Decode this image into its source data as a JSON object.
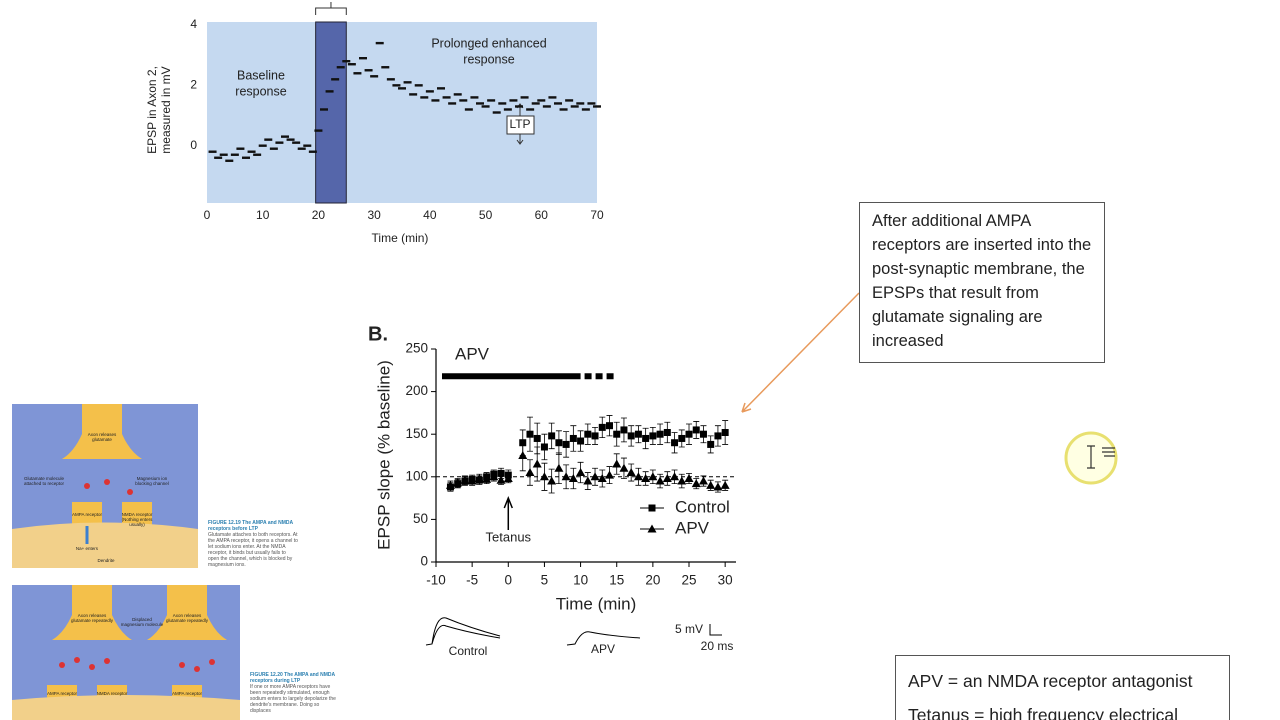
{
  "chart_data": [
    {
      "type": "scatter",
      "ylabel": [
        "EPSP in Axon 2,",
        "measured in mV"
      ],
      "xlabel": "Time (min)",
      "annotations": [
        [
          "Baseline",
          "response"
        ],
        [
          "Prolonged enhanced",
          "response"
        ],
        [
          "LTP"
        ]
      ],
      "shaded_range": [
        19.5,
        25
      ],
      "color": "#111111",
      "background": "#c5d9f0",
      "shade_color": "#5566aa",
      "x": [
        1,
        2,
        3,
        4,
        5,
        6,
        7,
        8,
        9,
        10,
        11,
        12,
        13,
        14,
        15,
        16,
        17,
        18,
        19,
        20,
        21,
        22,
        23,
        24,
        25,
        26,
        27,
        28,
        29,
        30,
        31,
        32,
        33,
        34,
        35,
        36,
        37,
        38,
        39,
        40,
        41,
        42,
        43,
        44,
        45,
        46,
        47,
        48,
        49,
        50,
        51,
        52,
        53,
        54,
        55,
        56,
        57,
        58,
        59,
        60,
        61,
        62,
        63,
        64,
        65,
        66,
        67,
        68,
        69,
        70
      ],
      "values": [
        -0.2,
        -0.4,
        -0.3,
        -0.5,
        -0.3,
        -0.1,
        -0.4,
        -0.2,
        -0.3,
        0.0,
        0.2,
        -0.1,
        0.1,
        0.3,
        0.2,
        0.1,
        -0.1,
        0.0,
        -0.2,
        0.5,
        1.2,
        1.8,
        2.2,
        2.6,
        2.8,
        2.7,
        2.4,
        2.9,
        2.5,
        2.3,
        3.4,
        2.6,
        2.2,
        2.0,
        1.9,
        2.1,
        1.7,
        2.0,
        1.6,
        1.8,
        1.5,
        1.9,
        1.6,
        1.4,
        1.7,
        1.5,
        1.2,
        1.6,
        1.4,
        1.3,
        1.5,
        1.1,
        1.4,
        1.2,
        1.5,
        1.3,
        1.6,
        1.2,
        1.4,
        1.5,
        1.3,
        1.6,
        1.4,
        1.2,
        1.5,
        1.3,
        1.4,
        1.2,
        1.4,
        1.3
      ],
      "xlim": [
        0,
        70
      ],
      "xticks": [
        0,
        10,
        20,
        30,
        40,
        50,
        60,
        70
      ],
      "ylim": [
        -1.9,
        4.1
      ],
      "yticks": [
        0,
        2,
        4
      ]
    },
    {
      "type": "scatter",
      "panel": "B.",
      "ylabel": "EPSP slope (% baseline)",
      "xlabel": "Time (min)",
      "bar_label": "APV",
      "bar_solid": [
        -10,
        10
      ],
      "bar_dashed": [
        10,
        15
      ],
      "bar_y": 225,
      "reference_line": 100,
      "arrow_annotation": {
        "text": "Tetanus",
        "x": 0
      },
      "xlim": [
        -10,
        31.5
      ],
      "xticks": [
        -10,
        -5,
        0,
        5,
        10,
        15,
        20,
        25,
        30
      ],
      "ylim": [
        0,
        250
      ],
      "yticks": [
        0,
        50,
        100,
        150,
        200,
        250
      ],
      "x": [
        -8,
        -7,
        -6,
        -5,
        -4,
        -3,
        -2,
        -1,
        0,
        2,
        3,
        4,
        5,
        6,
        7,
        8,
        9,
        10,
        11,
        12,
        13,
        14,
        15,
        16,
        17,
        18,
        19,
        20,
        21,
        22,
        23,
        24,
        25,
        26,
        27,
        28,
        29,
        30
      ],
      "series": [
        {
          "name": "Control",
          "marker": "square",
          "color": "#000000",
          "values": [
            88,
            92,
            95,
            97,
            96,
            100,
            103,
            104,
            102,
            140,
            150,
            145,
            135,
            148,
            140,
            138,
            145,
            142,
            150,
            148,
            158,
            160,
            150,
            155,
            148,
            150,
            145,
            148,
            150,
            152,
            140,
            145,
            150,
            155,
            150,
            138,
            148,
            152
          ],
          "errors": [
            5,
            5,
            5,
            5,
            5,
            5,
            5,
            6,
            6,
            15,
            20,
            18,
            15,
            15,
            14,
            15,
            15,
            12,
            12,
            10,
            12,
            12,
            14,
            14,
            12,
            10,
            12,
            10,
            12,
            12,
            12,
            10,
            12,
            10,
            10,
            10,
            12,
            14
          ]
        },
        {
          "name": "APV",
          "marker": "triangle",
          "color": "#000000",
          "values": [
            90,
            93,
            96,
            95,
            98,
            97,
            100,
            96,
            98,
            125,
            105,
            115,
            100,
            95,
            110,
            100,
            98,
            105,
            95,
            100,
            98,
            102,
            115,
            110,
            105,
            100,
            98,
            100,
            95,
            98,
            100,
            95,
            98,
            92,
            95,
            90,
            88,
            90
          ],
          "errors": [
            5,
            5,
            5,
            5,
            5,
            5,
            5,
            5,
            5,
            18,
            15,
            20,
            16,
            14,
            18,
            14,
            12,
            12,
            10,
            10,
            10,
            10,
            12,
            12,
            10,
            10,
            8,
            8,
            8,
            8,
            8,
            8,
            6,
            6,
            6,
            6,
            6,
            6
          ]
        }
      ],
      "legend": "lower right",
      "trace_labels": [
        "Control",
        "APV"
      ],
      "scale_labels": [
        "5 mV",
        "20 ms"
      ]
    }
  ],
  "callouts": [
    "After additional AMPA receptors are inserted into the post-synaptic membrane, the EPSPs that result from glutamate signaling are increased",
    "APV = an NMDA receptor antagonist",
    "Tetanus = high frequency electrical"
  ],
  "figures": [
    {
      "caption_title": "FIGURE 12.19 The AMPA and NMDA receptors before LTP",
      "caption": "Glutamate attaches to both receptors. At the AMPA receptor, it opens a channel to let sodium ions enter. At the NMDA receptor, it binds but usually fails to open the channel, which is blocked by magnesium ions.",
      "labels": [
        "Axon releases glutamate",
        "Glutamate molecule attached to receptor",
        "Magnesium ion blocking channel",
        "AMPA receptor",
        "NMDA receptor (Nothing enters usually)",
        "Na+ enters",
        "Dendrite"
      ]
    },
    {
      "caption_title": "FIGURE 12.20 The AMPA and NMDA receptors during LTP",
      "caption": "If one or more AMPA receptors have been repeatedly stimulated, enough sodium enters to largely depolarize the dendrite's membrane. Doing so displaces",
      "labels": [
        "Axon releases glutamate repeatedly",
        "Displaced magnesium molecule",
        "Axon releases glutamate repeatedly",
        "AMPA receptor",
        "NMDA receptor",
        "AMPA receptor"
      ]
    }
  ]
}
